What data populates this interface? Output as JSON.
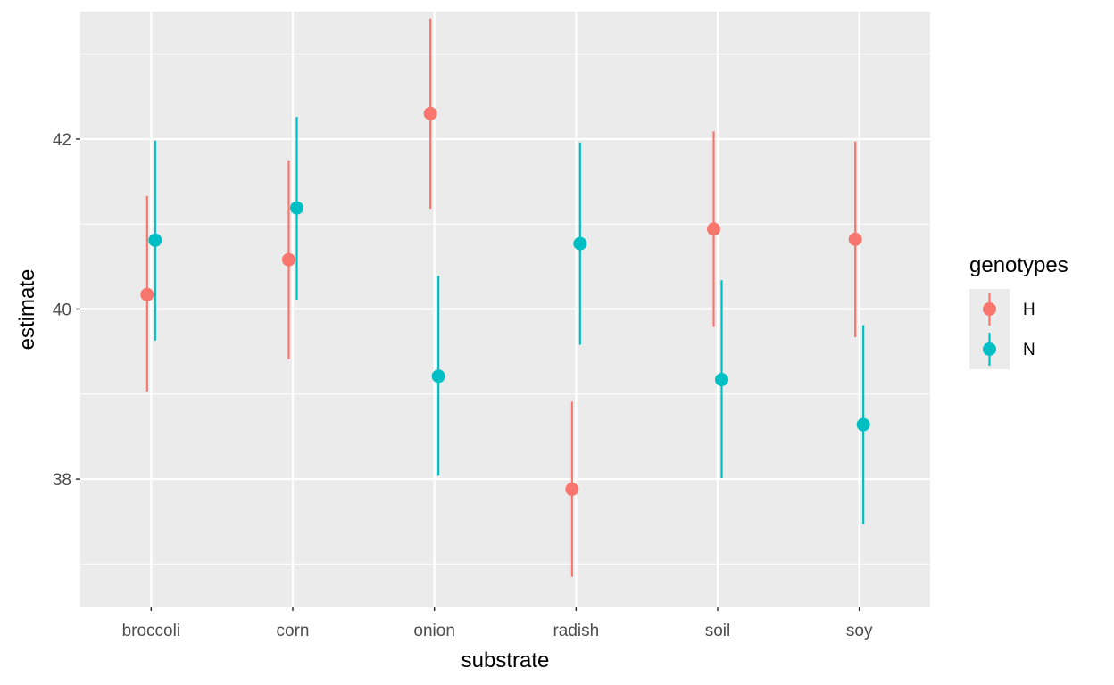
{
  "chart_data": {
    "type": "pointrange",
    "categories": [
      "broccoli",
      "corn",
      "onion",
      "radish",
      "soil",
      "soy"
    ],
    "xlabel": "substrate",
    "ylabel": "estimate",
    "ylim": [
      36.5,
      43.5
    ],
    "yticks": [
      38,
      40,
      42
    ],
    "grid": true,
    "legend": {
      "title": "genotypes",
      "placement": "right"
    },
    "series": [
      {
        "name": "H",
        "color": "#F8766D",
        "points": [
          {
            "category": "broccoli",
            "estimate": 40.17,
            "lower": 39.03,
            "upper": 41.33
          },
          {
            "category": "corn",
            "estimate": 40.58,
            "lower": 39.41,
            "upper": 41.75
          },
          {
            "category": "onion",
            "estimate": 42.3,
            "lower": 41.18,
            "upper": 43.42
          },
          {
            "category": "radish",
            "estimate": 37.88,
            "lower": 36.85,
            "upper": 38.91
          },
          {
            "category": "soil",
            "estimate": 40.94,
            "lower": 39.79,
            "upper": 42.09
          },
          {
            "category": "soy",
            "estimate": 40.82,
            "lower": 39.67,
            "upper": 41.97
          }
        ]
      },
      {
        "name": "N",
        "color": "#00BFC4",
        "points": [
          {
            "category": "broccoli",
            "estimate": 40.81,
            "lower": 39.63,
            "upper": 41.98
          },
          {
            "category": "corn",
            "estimate": 41.19,
            "lower": 40.11,
            "upper": 42.26
          },
          {
            "category": "onion",
            "estimate": 39.21,
            "lower": 38.04,
            "upper": 40.39
          },
          {
            "category": "radish",
            "estimate": 40.77,
            "lower": 39.58,
            "upper": 41.96
          },
          {
            "category": "soil",
            "estimate": 39.17,
            "lower": 38.01,
            "upper": 40.34
          },
          {
            "category": "soy",
            "estimate": 38.64,
            "lower": 37.47,
            "upper": 39.81
          }
        ]
      }
    ]
  }
}
